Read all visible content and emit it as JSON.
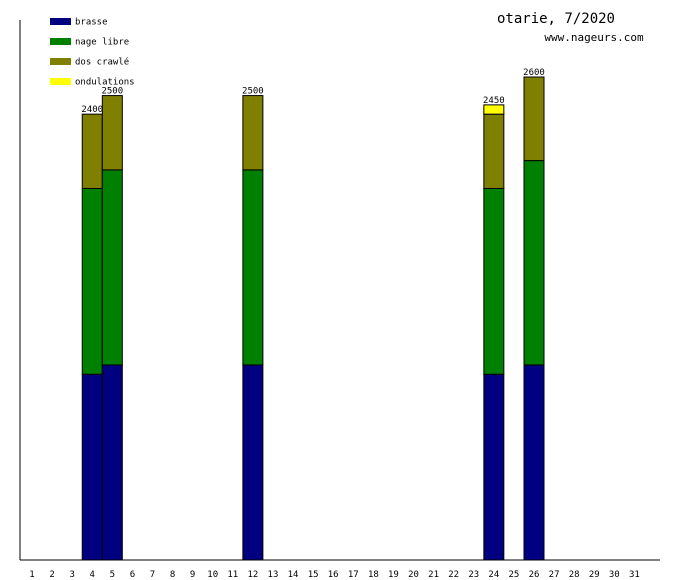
{
  "chart_data": {
    "type": "bar",
    "stacked": true,
    "title": "otarie, 7/2020",
    "subtitle": "www.nageurs.com",
    "legend_position": "top-left",
    "grid": false,
    "ylim": [
      0,
      2600
    ],
    "categories": [
      "1",
      "2",
      "3",
      "4",
      "5",
      "6",
      "7",
      "8",
      "9",
      "10",
      "11",
      "12",
      "13",
      "14",
      "15",
      "16",
      "17",
      "18",
      "19",
      "20",
      "21",
      "22",
      "23",
      "24",
      "25",
      "26",
      "27",
      "28",
      "29",
      "30",
      "31"
    ],
    "series": [
      {
        "name": "brasse",
        "color": "#000080",
        "values": {
          "4": 1000,
          "5": 1050,
          "12": 1050,
          "24": 1000,
          "26": 1050
        }
      },
      {
        "name": "nage libre",
        "color": "#008000",
        "values": {
          "4": 1000,
          "5": 1050,
          "12": 1050,
          "24": 1000,
          "26": 1100
        }
      },
      {
        "name": "dos crawlé",
        "color": "#808000",
        "values": {
          "4": 400,
          "5": 400,
          "12": 400,
          "24": 400,
          "26": 450
        }
      },
      {
        "name": "ondulations",
        "color": "#ffff00",
        "values": {
          "24": 50
        }
      }
    ],
    "totals": [
      {
        "day": "4",
        "label": "2400"
      },
      {
        "day": "5",
        "label": "2500"
      },
      {
        "day": "12",
        "label": "2500"
      },
      {
        "day": "24",
        "label": "2450"
      },
      {
        "day": "26",
        "label": "2600"
      }
    ]
  }
}
